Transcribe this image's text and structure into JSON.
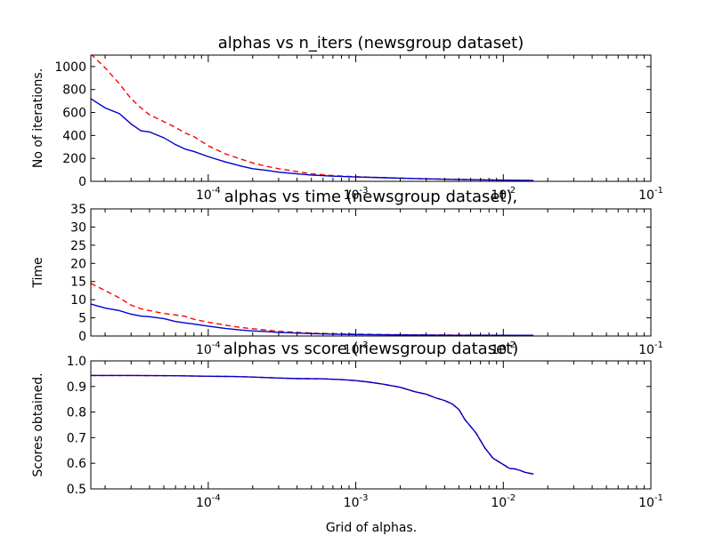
{
  "figure": {
    "xlabel": "Grid of alphas."
  },
  "chart_data": [
    {
      "type": "line",
      "title": "alphas vs n_iters (newsgroup dataset)",
      "ylabel": "No of iterations.",
      "xscale": "log",
      "xlim": [
        1.6e-05,
        0.1
      ],
      "ylim": [
        0,
        1100
      ],
      "yticks": [
        "0",
        "200",
        "400",
        "600",
        "800",
        "1000"
      ],
      "xticks": [
        {
          "base": "10",
          "exp": "-4"
        },
        {
          "base": "10",
          "exp": "-3"
        },
        {
          "base": "10",
          "exp": "-2"
        },
        {
          "base": "10",
          "exp": "-1"
        }
      ],
      "grid": false,
      "series": [
        {
          "color": "#ff0000",
          "style": "dashed",
          "points": [
            [
              1.6e-05,
              1110
            ],
            [
              2e-05,
              990
            ],
            [
              2.5e-05,
              850
            ],
            [
              3e-05,
              720
            ],
            [
              3.5e-05,
              640
            ],
            [
              4e-05,
              580
            ],
            [
              5e-05,
              520
            ],
            [
              6e-05,
              470
            ],
            [
              7e-05,
              420
            ],
            [
              8e-05,
              390
            ],
            [
              0.0001,
              310
            ],
            [
              0.00013,
              240
            ],
            [
              0.00017,
              190
            ],
            [
              0.0002,
              160
            ],
            [
              0.00025,
              130
            ],
            [
              0.0003,
              110
            ],
            [
              0.0004,
              85
            ],
            [
              0.0005,
              65
            ],
            [
              0.0007,
              50
            ],
            [
              0.001,
              40
            ],
            [
              0.0015,
              33
            ],
            [
              0.002,
              28
            ],
            [
              0.003,
              22
            ],
            [
              0.005,
              17
            ],
            [
              0.008,
              12
            ],
            [
              0.012,
              10
            ],
            [
              0.016,
              8
            ]
          ]
        },
        {
          "color": "#0000cc",
          "style": "solid",
          "points": [
            [
              1.6e-05,
              720
            ],
            [
              2e-05,
              640
            ],
            [
              2.5e-05,
              590
            ],
            [
              3e-05,
              500
            ],
            [
              3.5e-05,
              440
            ],
            [
              4e-05,
              430
            ],
            [
              5e-05,
              380
            ],
            [
              6e-05,
              320
            ],
            [
              7e-05,
              280
            ],
            [
              8e-05,
              260
            ],
            [
              0.0001,
              215
            ],
            [
              0.00013,
              170
            ],
            [
              0.00017,
              130
            ],
            [
              0.0002,
              110
            ],
            [
              0.00025,
              95
            ],
            [
              0.0003,
              80
            ],
            [
              0.0004,
              65
            ],
            [
              0.0005,
              55
            ],
            [
              0.0007,
              45
            ],
            [
              0.001,
              38
            ],
            [
              0.0015,
              32
            ],
            [
              0.002,
              28
            ],
            [
              0.003,
              22
            ],
            [
              0.005,
              16
            ],
            [
              0.008,
              12
            ],
            [
              0.012,
              9
            ],
            [
              0.016,
              7
            ]
          ]
        }
      ]
    },
    {
      "type": "line",
      "title": "alphas vs time (newsgroup dataset),",
      "ylabel": "Time",
      "xscale": "log",
      "xlim": [
        1.6e-05,
        0.1
      ],
      "ylim": [
        0,
        35
      ],
      "yticks": [
        "0",
        "5",
        "10",
        "15",
        "20",
        "25",
        "30",
        "35"
      ],
      "xticks": [
        {
          "base": "10",
          "exp": "-4"
        },
        {
          "base": "10",
          "exp": "-3"
        },
        {
          "base": "10",
          "exp": "-2"
        },
        {
          "base": "10",
          "exp": "-1"
        }
      ],
      "grid": false,
      "series": [
        {
          "color": "#ff0000",
          "style": "dashed",
          "points": [
            [
              1.6e-05,
              14.5
            ],
            [
              2e-05,
              12.5
            ],
            [
              2.5e-05,
              10.5
            ],
            [
              3e-05,
              8.5
            ],
            [
              3.5e-05,
              7.5
            ],
            [
              4e-05,
              7
            ],
            [
              5e-05,
              6.2
            ],
            [
              6e-05,
              5.8
            ],
            [
              7e-05,
              5.4
            ],
            [
              8e-05,
              4.6
            ],
            [
              0.0001,
              3.8
            ],
            [
              0.00013,
              3
            ],
            [
              0.00017,
              2.3
            ],
            [
              0.0002,
              2
            ],
            [
              0.00025,
              1.6
            ],
            [
              0.0003,
              1.3
            ],
            [
              0.0004,
              1
            ],
            [
              0.0005,
              0.8
            ],
            [
              0.0007,
              0.6
            ],
            [
              0.001,
              0.5
            ],
            [
              0.002,
              0.35
            ],
            [
              0.003,
              0.3
            ],
            [
              0.005,
              0.25
            ],
            [
              0.01,
              0.2
            ],
            [
              0.016,
              0.2
            ]
          ]
        },
        {
          "color": "#0000cc",
          "style": "solid",
          "points": [
            [
              1.6e-05,
              8.8
            ],
            [
              2e-05,
              7.7
            ],
            [
              2.5e-05,
              7
            ],
            [
              3e-05,
              6
            ],
            [
              3.5e-05,
              5.5
            ],
            [
              4e-05,
              5.3
            ],
            [
              5e-05,
              4.8
            ],
            [
              6e-05,
              4
            ],
            [
              7e-05,
              3.6
            ],
            [
              8e-05,
              3.3
            ],
            [
              0.0001,
              2.7
            ],
            [
              0.00013,
              2.1
            ],
            [
              0.00017,
              1.6
            ],
            [
              0.0002,
              1.4
            ],
            [
              0.00025,
              1.2
            ],
            [
              0.0003,
              1
            ],
            [
              0.0004,
              0.8
            ],
            [
              0.0005,
              0.65
            ],
            [
              0.0007,
              0.5
            ],
            [
              0.001,
              0.4
            ],
            [
              0.002,
              0.3
            ],
            [
              0.003,
              0.25
            ],
            [
              0.005,
              0.2
            ],
            [
              0.01,
              0.2
            ],
            [
              0.016,
              0.2
            ]
          ]
        }
      ]
    },
    {
      "type": "line",
      "title": "alphas vs score (newsgroup dataset)",
      "ylabel": "Scores obtained.",
      "xscale": "log",
      "xlim": [
        1.6e-05,
        0.1
      ],
      "ylim": [
        0.5,
        1.0
      ],
      "yticks": [
        "0.5",
        "0.6",
        "0.7",
        "0.8",
        "0.9",
        "1.0"
      ],
      "xticks": [
        {
          "base": "10",
          "exp": "-4"
        },
        {
          "base": "10",
          "exp": "-3"
        },
        {
          "base": "10",
          "exp": "-2"
        },
        {
          "base": "10",
          "exp": "-1"
        }
      ],
      "grid": false,
      "series": [
        {
          "color": "#ff0000",
          "style": "dashed",
          "points": [
            [
              1.6e-05,
              0.943
            ],
            [
              3e-05,
              0.943
            ],
            [
              6e-05,
              0.942
            ],
            [
              0.0001,
              0.94
            ],
            [
              0.00015,
              0.939
            ],
            [
              0.0002,
              0.937
            ],
            [
              0.0003,
              0.933
            ],
            [
              0.0004,
              0.931
            ],
            [
              0.0006,
              0.93
            ],
            [
              0.0008,
              0.927
            ],
            [
              0.001,
              0.923
            ],
            [
              0.0012,
              0.918
            ],
            [
              0.0015,
              0.91
            ],
            [
              0.002,
              0.897
            ],
            [
              0.0025,
              0.88
            ],
            [
              0.003,
              0.87
            ],
            [
              0.0035,
              0.855
            ],
            [
              0.004,
              0.845
            ],
            [
              0.0045,
              0.832
            ],
            [
              0.005,
              0.81
            ],
            [
              0.0055,
              0.77
            ],
            [
              0.0065,
              0.72
            ],
            [
              0.0075,
              0.66
            ],
            [
              0.0085,
              0.62
            ],
            [
              0.01,
              0.595
            ],
            [
              0.011,
              0.58
            ],
            [
              0.012,
              0.578
            ],
            [
              0.013,
              0.572
            ],
            [
              0.014,
              0.565
            ],
            [
              0.016,
              0.558
            ]
          ]
        },
        {
          "color": "#0000cc",
          "style": "solid",
          "points": [
            [
              1.6e-05,
              0.943
            ],
            [
              3e-05,
              0.943
            ],
            [
              6e-05,
              0.942
            ],
            [
              0.0001,
              0.94
            ],
            [
              0.00015,
              0.939
            ],
            [
              0.0002,
              0.937
            ],
            [
              0.0003,
              0.933
            ],
            [
              0.0004,
              0.931
            ],
            [
              0.0006,
              0.93
            ],
            [
              0.0008,
              0.927
            ],
            [
              0.001,
              0.923
            ],
            [
              0.0012,
              0.918
            ],
            [
              0.0015,
              0.91
            ],
            [
              0.002,
              0.897
            ],
            [
              0.0025,
              0.88
            ],
            [
              0.003,
              0.87
            ],
            [
              0.0035,
              0.855
            ],
            [
              0.004,
              0.845
            ],
            [
              0.0045,
              0.832
            ],
            [
              0.005,
              0.81
            ],
            [
              0.0055,
              0.77
            ],
            [
              0.0065,
              0.72
            ],
            [
              0.0075,
              0.66
            ],
            [
              0.0085,
              0.62
            ],
            [
              0.01,
              0.595
            ],
            [
              0.011,
              0.58
            ],
            [
              0.012,
              0.578
            ],
            [
              0.013,
              0.572
            ],
            [
              0.014,
              0.565
            ],
            [
              0.016,
              0.558
            ]
          ]
        }
      ]
    }
  ]
}
